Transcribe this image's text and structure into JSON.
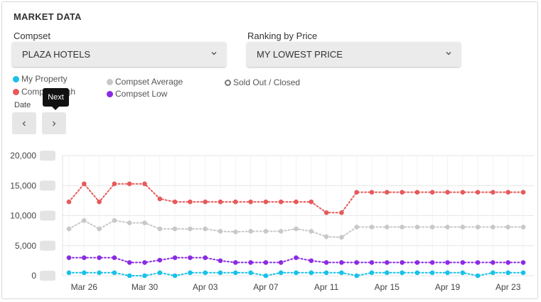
{
  "panel": {
    "title": "MARKET DATA"
  },
  "compset": {
    "label": "Compset",
    "value": "PLAZA HOTELS"
  },
  "ranking": {
    "label": "Ranking by Price",
    "value": "MY LOWEST PRICE"
  },
  "legend": [
    {
      "name": "My Property",
      "color": "#17c1e8"
    },
    {
      "name": "Compset High",
      "color": "#e65a5a"
    },
    {
      "name": "Compset Average",
      "color": "#c8c8c8"
    },
    {
      "name": "Compset Low",
      "color": "#8a2be2"
    },
    {
      "name": "Sold Out / Closed",
      "color": "#777777"
    }
  ],
  "date_nav": {
    "label": "Date",
    "prev_icon": "chevron-left-icon",
    "next_icon": "chevron-right-icon",
    "tooltip": "Next"
  },
  "chart_data": {
    "type": "line",
    "x": [
      "Mar 25",
      "Mar 26",
      "Mar 27",
      "Mar 28",
      "Mar 29",
      "Mar 30",
      "Mar 31",
      "Apr 01",
      "Apr 02",
      "Apr 03",
      "Apr 04",
      "Apr 05",
      "Apr 06",
      "Apr 07",
      "Apr 08",
      "Apr 09",
      "Apr 10",
      "Apr 11",
      "Apr 12",
      "Apr 13",
      "Apr 14",
      "Apr 15",
      "Apr 16",
      "Apr 17",
      "Apr 18",
      "Apr 19",
      "Apr 20",
      "Apr 21",
      "Apr 22",
      "Apr 23",
      "Apr 24"
    ],
    "x_tick_labels": [
      "Mar 26",
      "Mar 30",
      "Apr 03",
      "Apr 07",
      "Apr 11",
      "Apr 15",
      "Apr 19",
      "Apr 23"
    ],
    "y_tick_labels": [
      "20,000",
      "15,000",
      "10,000",
      "5,000",
      "0"
    ],
    "ylim": [
      0,
      20000
    ],
    "grid": true,
    "series": [
      {
        "name": "Compset High",
        "color": "#e65a5a",
        "values": [
          12300,
          15300,
          12300,
          15300,
          15300,
          15300,
          12800,
          12300,
          12300,
          12300,
          12300,
          12300,
          12300,
          12300,
          12300,
          12300,
          12300,
          10500,
          10500,
          13900,
          13900,
          13900,
          13900,
          13900,
          13900,
          13900,
          13900,
          13900,
          13900,
          13900,
          13900
        ]
      },
      {
        "name": "Compset Average",
        "color": "#c8c8c8",
        "values": [
          7800,
          9200,
          7800,
          9200,
          8800,
          8800,
          7800,
          7800,
          7800,
          7800,
          7400,
          7300,
          7400,
          7400,
          7400,
          7800,
          7400,
          6500,
          6400,
          8100,
          8100,
          8100,
          8100,
          8100,
          8100,
          8100,
          8100,
          8100,
          8100,
          8100,
          8100
        ]
      },
      {
        "name": "Compset Low",
        "color": "#8a2be2",
        "values": [
          3000,
          3000,
          3000,
          3000,
          2200,
          2200,
          2600,
          3000,
          3000,
          3000,
          2500,
          2200,
          2200,
          2200,
          2200,
          3000,
          2500,
          2200,
          2200,
          2200,
          2200,
          2200,
          2200,
          2200,
          2200,
          2200,
          2200,
          2200,
          2200,
          2200,
          2200
        ]
      },
      {
        "name": "My Property",
        "color": "#17c1e8",
        "values": [
          500,
          500,
          500,
          500,
          0,
          0,
          500,
          0,
          500,
          500,
          500,
          500,
          500,
          0,
          500,
          500,
          500,
          500,
          500,
          0,
          500,
          500,
          500,
          500,
          500,
          500,
          500,
          0,
          500,
          500,
          500
        ]
      }
    ]
  }
}
